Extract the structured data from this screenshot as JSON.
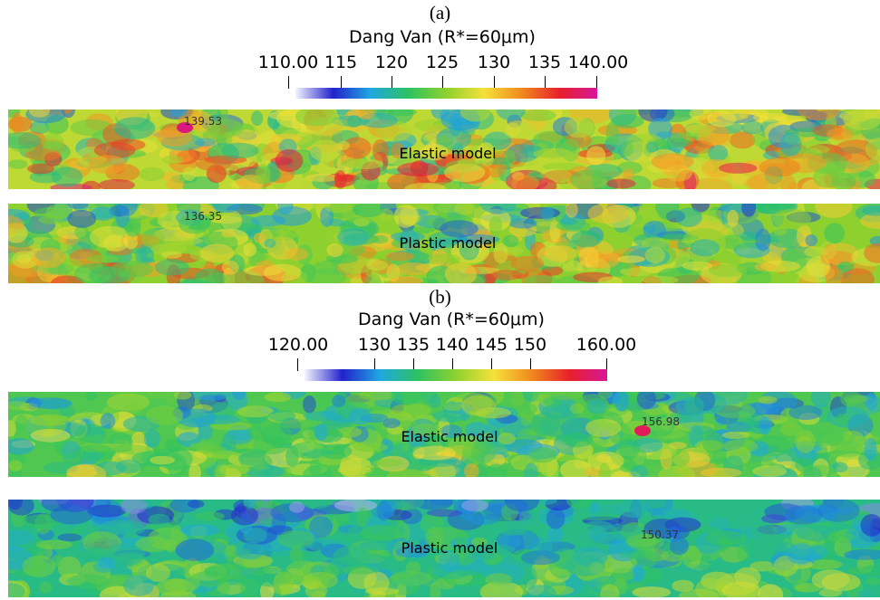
{
  "panels": [
    {
      "letter": "(a)",
      "colorbar": {
        "title": "Dang Van (R*=60μm)",
        "min_label": "110.00",
        "max_label": "140.00",
        "ticks": [
          "115",
          "120",
          "125",
          "130",
          "135"
        ]
      },
      "maps": [
        {
          "model": "Elastic model",
          "max_value": "139.53"
        },
        {
          "model": "Plastic model",
          "max_value": "136.35"
        }
      ]
    },
    {
      "letter": "(b)",
      "colorbar": {
        "title": "Dang Van (R*=60μm)",
        "min_label": "120.00",
        "max_label": "160.00",
        "ticks": [
          "130",
          "135",
          "140",
          "145",
          "150"
        ]
      },
      "maps": [
        {
          "model": "Elastic model",
          "max_value": "156.98"
        },
        {
          "model": "Plastic model",
          "max_value": "150.37"
        }
      ]
    }
  ],
  "colormap": [
    "#f4f4ff",
    "#2222cc",
    "#1fa8e0",
    "#2dc262",
    "#8ed12f",
    "#f5e13a",
    "#f08a1e",
    "#e8202a",
    "#d8169a"
  ]
}
